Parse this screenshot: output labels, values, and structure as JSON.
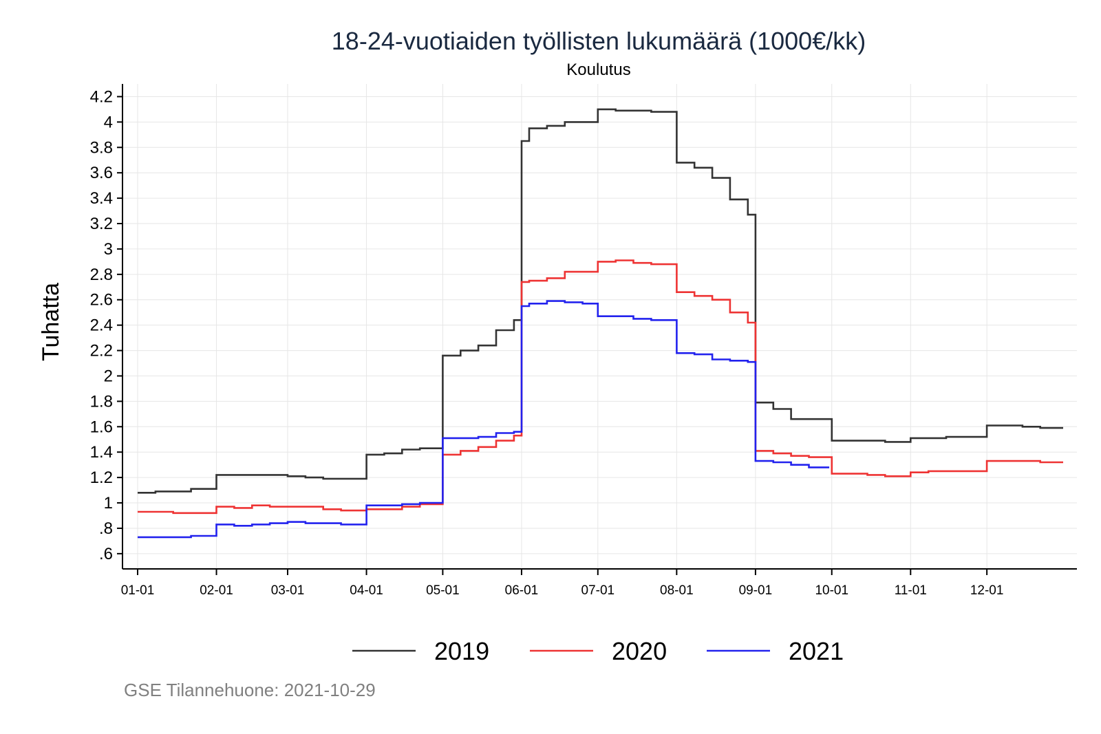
{
  "chart_data": {
    "type": "line",
    "title": "18-24-vuotiaiden työllisten lukumäärä (1000€/kk)",
    "subtitle": "Koulutus",
    "xlabel": "",
    "ylabel": "Tuhatta",
    "note": "GSE Tilannehuone: 2021-10-29",
    "x_tick_labels": [
      "01-01",
      "02-01",
      "03-01",
      "04-01",
      "05-01",
      "06-01",
      "07-01",
      "08-01",
      "09-01",
      "10-01",
      "11-01",
      "12-01"
    ],
    "y_ticks": [
      0.6,
      0.8,
      1,
      1.2,
      1.4,
      1.6,
      1.8,
      2,
      2.2,
      2.4,
      2.6,
      2.8,
      3,
      3.2,
      3.4,
      3.6,
      3.8,
      4,
      4.2
    ],
    "y_tick_labels": [
      ".6",
      ".8",
      "1",
      "1.2",
      "1.4",
      "1.6",
      "1.8",
      "2",
      "2.2",
      "2.4",
      "2.6",
      "2.8",
      "3",
      "3.2",
      "3.4",
      "3.6",
      "3.8",
      "4",
      "4.2"
    ],
    "ylim": [
      0.48,
      4.3
    ],
    "grid": true,
    "legend_position": "bottom",
    "series": [
      {
        "name": "2019",
        "color": "#333333",
        "points": [
          [
            "01-01",
            1.08
          ],
          [
            "01-08",
            1.09
          ],
          [
            "01-15",
            1.09
          ],
          [
            "01-22",
            1.11
          ],
          [
            "02-01",
            1.22
          ],
          [
            "02-08",
            1.22
          ],
          [
            "02-15",
            1.22
          ],
          [
            "02-22",
            1.22
          ],
          [
            "03-01",
            1.21
          ],
          [
            "03-08",
            1.2
          ],
          [
            "03-15",
            1.19
          ],
          [
            "03-22",
            1.19
          ],
          [
            "04-01",
            1.38
          ],
          [
            "04-08",
            1.39
          ],
          [
            "04-15",
            1.42
          ],
          [
            "04-22",
            1.43
          ],
          [
            "05-01",
            2.16
          ],
          [
            "05-08",
            2.2
          ],
          [
            "05-15",
            2.24
          ],
          [
            "05-22",
            2.36
          ],
          [
            "05-29",
            2.44
          ],
          [
            "06-01",
            3.85
          ],
          [
            "06-04",
            3.95
          ],
          [
            "06-11",
            3.97
          ],
          [
            "06-18",
            4.0
          ],
          [
            "06-25",
            4.0
          ],
          [
            "07-01",
            4.1
          ],
          [
            "07-08",
            4.09
          ],
          [
            "07-15",
            4.09
          ],
          [
            "07-22",
            4.08
          ],
          [
            "08-01",
            3.68
          ],
          [
            "08-08",
            3.64
          ],
          [
            "08-15",
            3.56
          ],
          [
            "08-22",
            3.39
          ],
          [
            "08-29",
            3.27
          ],
          [
            "09-01",
            1.79
          ],
          [
            "09-08",
            1.74
          ],
          [
            "09-15",
            1.66
          ],
          [
            "09-22",
            1.66
          ],
          [
            "10-01",
            1.49
          ],
          [
            "10-08",
            1.49
          ],
          [
            "10-15",
            1.49
          ],
          [
            "10-22",
            1.48
          ],
          [
            "11-01",
            1.51
          ],
          [
            "11-08",
            1.51
          ],
          [
            "11-15",
            1.52
          ],
          [
            "11-22",
            1.52
          ],
          [
            "12-01",
            1.61
          ],
          [
            "12-08",
            1.61
          ],
          [
            "12-15",
            1.6
          ],
          [
            "12-22",
            1.59
          ],
          [
            "12-31",
            1.59
          ]
        ]
      },
      {
        "name": "2020",
        "color": "#ee3333",
        "points": [
          [
            "01-01",
            0.93
          ],
          [
            "01-08",
            0.93
          ],
          [
            "01-15",
            0.92
          ],
          [
            "01-22",
            0.92
          ],
          [
            "02-01",
            0.97
          ],
          [
            "02-08",
            0.96
          ],
          [
            "02-15",
            0.98
          ],
          [
            "02-22",
            0.97
          ],
          [
            "03-01",
            0.97
          ],
          [
            "03-08",
            0.97
          ],
          [
            "03-15",
            0.95
          ],
          [
            "03-22",
            0.94
          ],
          [
            "04-01",
            0.95
          ],
          [
            "04-08",
            0.95
          ],
          [
            "04-15",
            0.97
          ],
          [
            "04-22",
            0.99
          ],
          [
            "05-01",
            1.38
          ],
          [
            "05-08",
            1.41
          ],
          [
            "05-15",
            1.44
          ],
          [
            "05-22",
            1.49
          ],
          [
            "05-29",
            1.53
          ],
          [
            "06-01",
            2.74
          ],
          [
            "06-04",
            2.75
          ],
          [
            "06-11",
            2.77
          ],
          [
            "06-18",
            2.82
          ],
          [
            "06-25",
            2.82
          ],
          [
            "07-01",
            2.9
          ],
          [
            "07-08",
            2.91
          ],
          [
            "07-15",
            2.89
          ],
          [
            "07-22",
            2.88
          ],
          [
            "08-01",
            2.66
          ],
          [
            "08-08",
            2.63
          ],
          [
            "08-15",
            2.6
          ],
          [
            "08-22",
            2.5
          ],
          [
            "08-29",
            2.42
          ],
          [
            "09-01",
            1.41
          ],
          [
            "09-08",
            1.39
          ],
          [
            "09-15",
            1.37
          ],
          [
            "09-22",
            1.36
          ],
          [
            "10-01",
            1.23
          ],
          [
            "10-08",
            1.23
          ],
          [
            "10-15",
            1.22
          ],
          [
            "10-22",
            1.21
          ],
          [
            "11-01",
            1.24
          ],
          [
            "11-08",
            1.25
          ],
          [
            "11-15",
            1.25
          ],
          [
            "11-22",
            1.25
          ],
          [
            "12-01",
            1.33
          ],
          [
            "12-08",
            1.33
          ],
          [
            "12-15",
            1.33
          ],
          [
            "12-22",
            1.32
          ],
          [
            "12-31",
            1.32
          ]
        ]
      },
      {
        "name": "2021",
        "color": "#2222ee",
        "points": [
          [
            "01-01",
            0.73
          ],
          [
            "01-08",
            0.73
          ],
          [
            "01-15",
            0.73
          ],
          [
            "01-22",
            0.74
          ],
          [
            "02-01",
            0.83
          ],
          [
            "02-08",
            0.82
          ],
          [
            "02-15",
            0.83
          ],
          [
            "02-22",
            0.84
          ],
          [
            "03-01",
            0.85
          ],
          [
            "03-08",
            0.84
          ],
          [
            "03-15",
            0.84
          ],
          [
            "03-22",
            0.83
          ],
          [
            "04-01",
            0.98
          ],
          [
            "04-08",
            0.98
          ],
          [
            "04-15",
            0.99
          ],
          [
            "04-22",
            1.0
          ],
          [
            "05-01",
            1.51
          ],
          [
            "05-08",
            1.51
          ],
          [
            "05-15",
            1.52
          ],
          [
            "05-22",
            1.55
          ],
          [
            "05-29",
            1.56
          ],
          [
            "06-01",
            2.55
          ],
          [
            "06-04",
            2.57
          ],
          [
            "06-11",
            2.59
          ],
          [
            "06-18",
            2.58
          ],
          [
            "06-25",
            2.57
          ],
          [
            "07-01",
            2.47
          ],
          [
            "07-08",
            2.47
          ],
          [
            "07-15",
            2.45
          ],
          [
            "07-22",
            2.44
          ],
          [
            "08-01",
            2.18
          ],
          [
            "08-08",
            2.17
          ],
          [
            "08-15",
            2.13
          ],
          [
            "08-22",
            2.12
          ],
          [
            "08-29",
            2.11
          ],
          [
            "09-01",
            1.33
          ],
          [
            "09-08",
            1.32
          ],
          [
            "09-15",
            1.3
          ],
          [
            "09-22",
            1.28
          ],
          [
            "09-30",
            1.28
          ]
        ]
      }
    ]
  }
}
